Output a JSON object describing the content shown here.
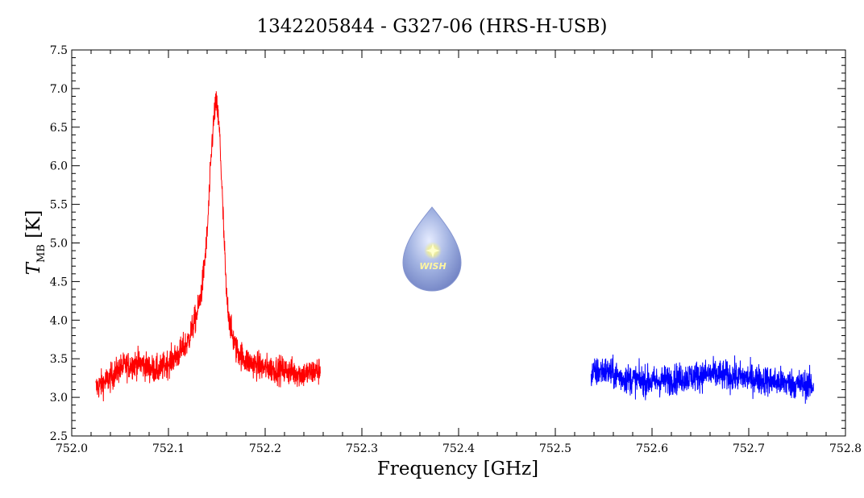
{
  "chart_data": {
    "type": "line",
    "title": "1342205844 - G327-06 (HRS-H-USB)",
    "xlabel": "Frequency [GHz]",
    "ylabel_main": "T",
    "ylabel_sub": "MB",
    "ylabel_unit": " [K]",
    "xlim": [
      752.0,
      752.8
    ],
    "ylim": [
      2.5,
      7.5
    ],
    "xticks": [
      "752.0",
      "752.1",
      "752.2",
      "752.3",
      "752.4",
      "752.5",
      "752.6",
      "752.7",
      "752.8"
    ],
    "yticks": [
      "2.5",
      "3.0",
      "3.5",
      "4.0",
      "4.5",
      "5.0",
      "5.5",
      "6.0",
      "6.5",
      "7.0",
      "7.5"
    ],
    "grid": false,
    "series": [
      {
        "color": "#ff0000",
        "x_range": [
          752.025,
          752.257
        ],
        "noise": 0.13,
        "profile": [
          [
            752.025,
            3.12
          ],
          [
            752.04,
            3.25
          ],
          [
            752.05,
            3.38
          ],
          [
            752.06,
            3.42
          ],
          [
            752.07,
            3.45
          ],
          [
            752.08,
            3.38
          ],
          [
            752.09,
            3.35
          ],
          [
            752.1,
            3.45
          ],
          [
            752.11,
            3.55
          ],
          [
            752.12,
            3.72
          ],
          [
            752.13,
            4.1
          ],
          [
            752.135,
            4.45
          ],
          [
            752.14,
            5.1
          ],
          [
            752.145,
            6.3
          ],
          [
            752.148,
            6.75
          ],
          [
            752.15,
            6.8
          ],
          [
            752.153,
            6.4
          ],
          [
            752.157,
            5.2
          ],
          [
            752.16,
            4.3
          ],
          [
            752.165,
            3.85
          ],
          [
            752.17,
            3.62
          ],
          [
            752.18,
            3.48
          ],
          [
            752.19,
            3.42
          ],
          [
            752.2,
            3.38
          ],
          [
            752.22,
            3.35
          ],
          [
            752.24,
            3.3
          ],
          [
            752.257,
            3.35
          ]
        ]
      },
      {
        "color": "#0000ff",
        "x_range": [
          752.537,
          752.767
        ],
        "noise": 0.14,
        "profile": [
          [
            752.537,
            3.3
          ],
          [
            752.55,
            3.35
          ],
          [
            752.57,
            3.25
          ],
          [
            752.6,
            3.2
          ],
          [
            752.63,
            3.25
          ],
          [
            752.66,
            3.3
          ],
          [
            752.7,
            3.25
          ],
          [
            752.73,
            3.2
          ],
          [
            752.767,
            3.15
          ]
        ]
      }
    ]
  },
  "logo": {
    "text": "WISH"
  }
}
